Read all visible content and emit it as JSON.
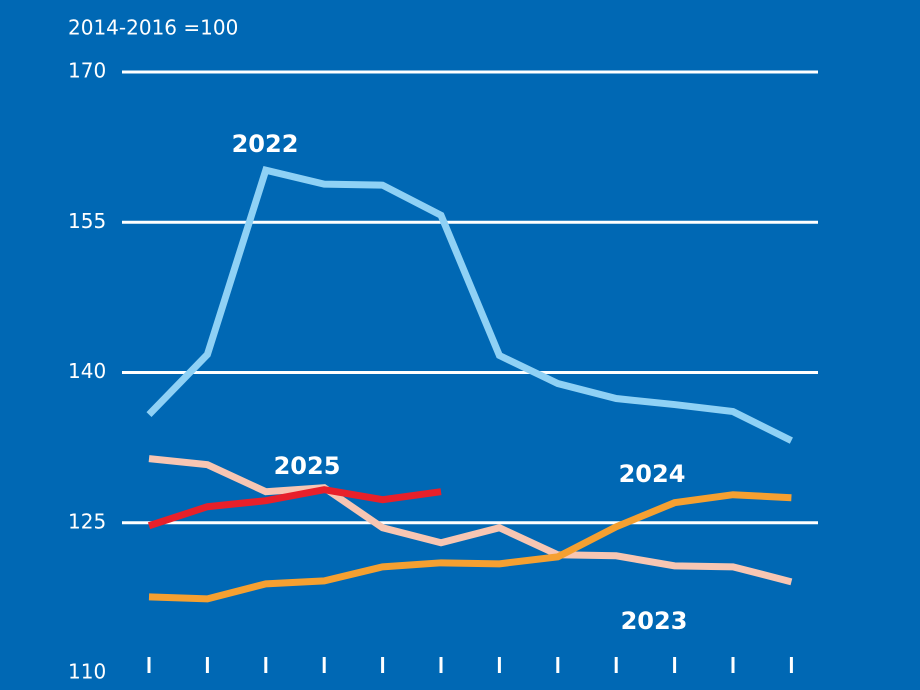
{
  "chart_data": {
    "type": "line",
    "y_label": "2014-2016 =100",
    "categories": [
      null,
      null,
      null,
      null,
      null,
      null,
      null,
      null,
      null,
      null,
      null,
      null
    ],
    "ylim": [
      110,
      170
    ],
    "yticks": [
      110,
      125,
      140,
      155,
      170
    ],
    "grid": true,
    "series": [
      {
        "name": "2022",
        "color": "#8fd1f5",
        "values": [
          135.8,
          141.8,
          160.2,
          158.8,
          158.7,
          155.7,
          141.7,
          138.9,
          137.4,
          136.8,
          136.1,
          133.2
        ]
      },
      {
        "name": "2023",
        "color": "#f7c6b3",
        "values": [
          131.4,
          130.8,
          128.1,
          128.5,
          124.5,
          123.0,
          124.5,
          121.8,
          121.7,
          120.7,
          120.6,
          119.1
        ]
      },
      {
        "name": "2024",
        "color": "#f5a031",
        "values": [
          117.6,
          117.4,
          118.9,
          119.2,
          120.6,
          121.0,
          120.9,
          121.6,
          124.6,
          127.0,
          127.8,
          127.5
        ]
      },
      {
        "name": "2025",
        "color": "#e8202a",
        "values": [
          124.7,
          126.6,
          127.2,
          128.3,
          127.3,
          128.1,
          null,
          null,
          null,
          null,
          null,
          null
        ]
      }
    ]
  }
}
